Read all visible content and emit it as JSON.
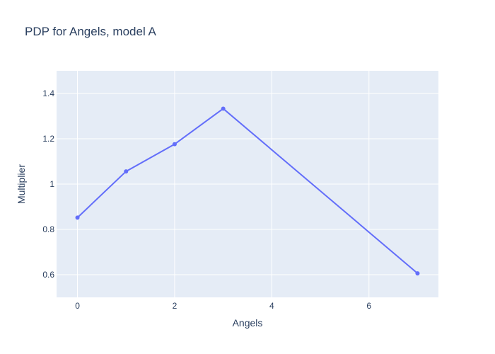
{
  "chart_data": {
    "type": "line",
    "title": "PDP for Angels, model A",
    "xlabel": "Angels",
    "ylabel": "Multiplier",
    "x": [
      0,
      1,
      2,
      3,
      7
    ],
    "series": [
      {
        "values": [
          0.852,
          1.056,
          1.176,
          1.333,
          0.606
        ],
        "color": "#636efa"
      }
    ],
    "xlim": [
      -0.43,
      7.43
    ],
    "ylim": [
      0.5,
      1.5
    ],
    "xticks": [
      0,
      2,
      4,
      6
    ],
    "yticks": [
      0.6,
      0.8,
      1,
      1.2,
      1.4
    ],
    "grid": true,
    "plot_background": "#e5ecf6",
    "gridline_color": "#ffffff"
  }
}
